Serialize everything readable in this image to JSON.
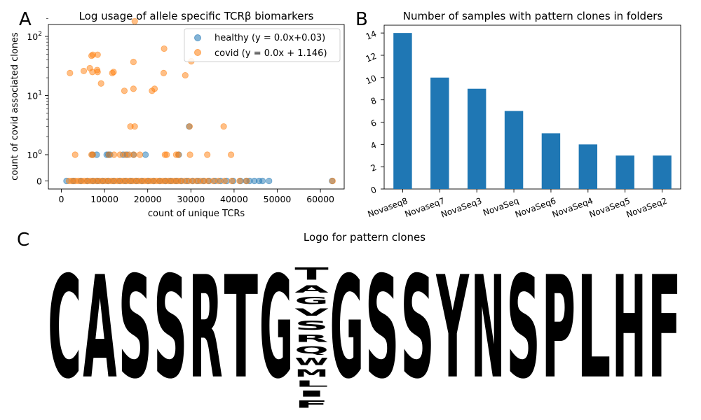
{
  "panel_labels": [
    "A",
    "B",
    "C"
  ],
  "chart_data": [
    {
      "type": "scatter",
      "panel": "A",
      "title": "Log usage of allele specific TCRβ biomarkers",
      "xlabel": "count of unique TCRs",
      "ylabel": "count of covid associated clones",
      "xlim": [
        -3000,
        65500
      ],
      "x_ticks": [
        0,
        10000,
        20000,
        30000,
        40000,
        50000,
        60000
      ],
      "y_scale": "symlog",
      "y_ticks": [
        {
          "value": 0,
          "label": "0"
        },
        {
          "value": 1,
          "label": "10^0"
        },
        {
          "value": 10,
          "label": "10^1"
        },
        {
          "value": 100,
          "label": "10^2"
        }
      ],
      "y_ticks_minor": [
        2,
        3,
        4,
        5,
        6,
        7,
        8,
        9,
        20,
        30,
        40,
        50,
        60,
        70,
        80,
        90,
        200
      ],
      "legend": "top-right",
      "series": [
        {
          "name": "healthy (y = 0.0x+0.03)",
          "color": "#1f77b4",
          "points": [
            [
              1200,
              0
            ],
            [
              2800,
              0
            ],
            [
              4500,
              0
            ],
            [
              6000,
              0
            ],
            [
              7300,
              0
            ],
            [
              8400,
              0
            ],
            [
              9600,
              0
            ],
            [
              10800,
              0
            ],
            [
              12100,
              0
            ],
            [
              13500,
              0
            ],
            [
              14800,
              0
            ],
            [
              16100,
              0
            ],
            [
              17400,
              0
            ],
            [
              18700,
              0
            ],
            [
              20100,
              0
            ],
            [
              21400,
              0
            ],
            [
              22800,
              0
            ],
            [
              24100,
              0
            ],
            [
              25300,
              0
            ],
            [
              26600,
              0
            ],
            [
              27800,
              0
            ],
            [
              29100,
              0
            ],
            [
              30400,
              0
            ],
            [
              31600,
              0
            ],
            [
              32900,
              0
            ],
            [
              34200,
              0
            ],
            [
              35600,
              0
            ],
            [
              36900,
              0
            ],
            [
              38300,
              0
            ],
            [
              39800,
              0
            ],
            [
              41500,
              0
            ],
            [
              42800,
              0
            ],
            [
              43600,
              0
            ],
            [
              44700,
              0
            ],
            [
              45800,
              0
            ],
            [
              46600,
              0
            ],
            [
              48100,
              0
            ],
            [
              62700,
              0
            ],
            [
              7200,
              1
            ],
            [
              8200,
              1
            ],
            [
              10500,
              1
            ],
            [
              10900,
              1
            ],
            [
              11300,
              1
            ],
            [
              14300,
              1
            ],
            [
              15200,
              1
            ],
            [
              16700,
              1
            ],
            [
              19500,
              1
            ],
            [
              27200,
              1
            ],
            [
              29600,
              3
            ]
          ]
        },
        {
          "name": "covid (y = 0.0x + 1.146)",
          "color": "#ff7f0e",
          "points": [
            [
              1800,
              0
            ],
            [
              2500,
              0
            ],
            [
              3200,
              0
            ],
            [
              3900,
              0
            ],
            [
              4600,
              0
            ],
            [
              5300,
              0
            ],
            [
              6000,
              0
            ],
            [
              6700,
              0
            ],
            [
              7400,
              0
            ],
            [
              8100,
              0
            ],
            [
              8800,
              0
            ],
            [
              9500,
              0
            ],
            [
              10200,
              0
            ],
            [
              10900,
              0
            ],
            [
              11600,
              0
            ],
            [
              12300,
              0
            ],
            [
              13000,
              0
            ],
            [
              13700,
              0
            ],
            [
              14400,
              0
            ],
            [
              15100,
              0
            ],
            [
              15800,
              0
            ],
            [
              16500,
              0
            ],
            [
              17200,
              0
            ],
            [
              17900,
              0
            ],
            [
              18600,
              0
            ],
            [
              19300,
              0
            ],
            [
              20000,
              0
            ],
            [
              20700,
              0
            ],
            [
              21400,
              0
            ],
            [
              22100,
              0
            ],
            [
              22800,
              0
            ],
            [
              23500,
              0
            ],
            [
              24200,
              0
            ],
            [
              24900,
              0
            ],
            [
              25600,
              0
            ],
            [
              26300,
              0
            ],
            [
              27000,
              0
            ],
            [
              27700,
              0
            ],
            [
              28600,
              0
            ],
            [
              29500,
              0
            ],
            [
              30400,
              0
            ],
            [
              31300,
              0
            ],
            [
              32200,
              0
            ],
            [
              33100,
              0
            ],
            [
              34000,
              0
            ],
            [
              35200,
              0
            ],
            [
              36400,
              0
            ],
            [
              37800,
              0
            ],
            [
              39500,
              0
            ],
            [
              41300,
              0
            ],
            [
              42900,
              0
            ],
            [
              62800,
              0
            ],
            [
              3200,
              1
            ],
            [
              7000,
              1
            ],
            [
              7300,
              1
            ],
            [
              11000,
              1
            ],
            [
              12200,
              1
            ],
            [
              13600,
              1
            ],
            [
              14800,
              1
            ],
            [
              15700,
              1
            ],
            [
              16800,
              1
            ],
            [
              18200,
              1
            ],
            [
              24000,
              1
            ],
            [
              24400,
              1
            ],
            [
              26600,
              1
            ],
            [
              27100,
              1
            ],
            [
              29800,
              1
            ],
            [
              33800,
              1
            ],
            [
              39300,
              1
            ],
            [
              16000,
              3
            ],
            [
              17000,
              3
            ],
            [
              29700,
              3
            ],
            [
              37600,
              3
            ],
            [
              14600,
              12
            ],
            [
              16700,
              13
            ],
            [
              21000,
              12
            ],
            [
              21600,
              13
            ],
            [
              9200,
              16
            ],
            [
              23700,
              24
            ],
            [
              28700,
              22
            ],
            [
              2000,
              24
            ],
            [
              5200,
              26
            ],
            [
              7200,
              25
            ],
            [
              8300,
              27
            ],
            [
              6600,
              29
            ],
            [
              8400,
              25
            ],
            [
              11800,
              24
            ],
            [
              12100,
              25
            ],
            [
              16700,
              37
            ],
            [
              30100,
              38
            ],
            [
              7000,
              47
            ],
            [
              7300,
              49
            ],
            [
              8400,
              49
            ],
            [
              23800,
              62
            ],
            [
              17000,
              180
            ]
          ]
        }
      ]
    },
    {
      "type": "bar",
      "panel": "B",
      "title": "Number of samples with pattern clones in folders",
      "categories": [
        "Novaseq8",
        "Novaseq7",
        "NovaSeq3",
        "NovaSeq",
        "NovaSeq6",
        "NovaSeq4",
        "NovaSeq5",
        "NovaSeq2"
      ],
      "values": [
        14,
        10,
        9,
        7,
        5,
        4,
        3,
        3
      ],
      "ylim": [
        0,
        14.7
      ],
      "y_ticks": [
        0,
        2,
        4,
        6,
        8,
        10,
        12,
        14
      ],
      "color": "#1f77b4"
    },
    {
      "type": "sequence-logo",
      "panel": "C",
      "title": "Logo for pattern clones",
      "positions": [
        {
          "letters": [
            {
              "char": "C",
              "height": 1.0,
              "color": "#1a9696"
            }
          ]
        },
        {
          "letters": [
            {
              "char": "A",
              "height": 1.0,
              "color": "#f99b6b"
            }
          ]
        },
        {
          "letters": [
            {
              "char": "S",
              "height": 1.0,
              "color": "#0b24f5"
            }
          ]
        },
        {
          "letters": [
            {
              "char": "S",
              "height": 1.0,
              "color": "#0b24f5"
            }
          ]
        },
        {
          "letters": [
            {
              "char": "R",
              "height": 1.0,
              "color": "#8b0000"
            }
          ]
        },
        {
          "letters": [
            {
              "char": "T",
              "height": 1.0,
              "color": "#2ef9f9"
            }
          ]
        },
        {
          "letters": [
            {
              "char": "G",
              "height": 1.0,
              "color": "#f0ec37"
            }
          ]
        },
        {
          "letters": [
            {
              "char": "F",
              "height": 0.07,
              "color": "#22f522"
            },
            {
              "char": "I",
              "height": 0.06,
              "color": "#dc9e3e"
            },
            {
              "char": "L",
              "height": 0.06,
              "color": "#f28a3a"
            },
            {
              "char": "M",
              "height": 0.07,
              "color": "#cc99cc"
            },
            {
              "char": "W",
              "height": 0.07,
              "color": "#6fcf6f"
            },
            {
              "char": "Q",
              "height": 0.07,
              "color": "#6a6ac4"
            },
            {
              "char": "R",
              "height": 0.07,
              "color": "#8b0000"
            },
            {
              "char": "S",
              "height": 0.09,
              "color": "#0b24f5"
            },
            {
              "char": "V",
              "height": 0.07,
              "color": "#f0ec37"
            },
            {
              "char": "G",
              "height": 0.07,
              "color": "#f0ec37"
            },
            {
              "char": "A",
              "height": 0.07,
              "color": "#f99b6b"
            },
            {
              "char": "T",
              "height": 0.12,
              "color": "#2ef9f9"
            }
          ]
        },
        {
          "letters": [
            {
              "char": "G",
              "height": 1.0,
              "color": "#f0ec37"
            }
          ]
        },
        {
          "letters": [
            {
              "char": "S",
              "height": 1.0,
              "color": "#0b24f5"
            }
          ]
        },
        {
          "letters": [
            {
              "char": "S",
              "height": 1.0,
              "color": "#0b24f5"
            }
          ]
        },
        {
          "letters": [
            {
              "char": "Y",
              "height": 1.0,
              "color": "#0a6a0a"
            }
          ]
        },
        {
          "letters": [
            {
              "char": "N",
              "height": 1.0,
              "color": "#356565"
            }
          ]
        },
        {
          "letters": [
            {
              "char": "S",
              "height": 1.0,
              "color": "#0b24f5"
            }
          ]
        },
        {
          "letters": [
            {
              "char": "P",
              "height": 1.0,
              "color": "#1f9bf5"
            }
          ]
        },
        {
          "letters": [
            {
              "char": "L",
              "height": 1.0,
              "color": "#f99b3e"
            }
          ]
        },
        {
          "letters": [
            {
              "char": "H",
              "height": 1.0,
              "color": "#650033"
            }
          ]
        },
        {
          "letters": [
            {
              "char": "F",
              "height": 1.0,
              "color": "#22f522"
            }
          ]
        }
      ]
    }
  ]
}
